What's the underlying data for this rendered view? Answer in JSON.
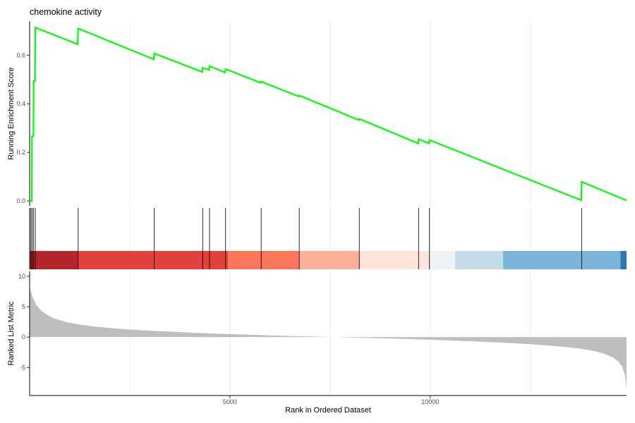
{
  "chart_data": {
    "type": "gsea-enrichment-plot",
    "title": "chemokine activity",
    "xlabel": "Rank in Ordered Dataset",
    "x_ticks": [
      5000,
      10000
    ],
    "xlim": [
      0,
      14900
    ],
    "enrichment_panel": {
      "ylabel": "Running Enrichment Score",
      "ylim": [
        -0.02,
        0.74
      ],
      "y_ticks": [
        0.0,
        0.2,
        0.4,
        0.6
      ],
      "y_tick_labels": [
        "0.0",
        "0.2",
        "0.4",
        "0.6"
      ],
      "line_color": "#00ff00",
      "running_score": [
        [
          0,
          0.0
        ],
        [
          55,
          0.0
        ],
        [
          58,
          0.266
        ],
        [
          95,
          0.266
        ],
        [
          100,
          0.493
        ],
        [
          135,
          0.493
        ],
        [
          140,
          0.714
        ],
        [
          1200,
          0.645
        ],
        [
          1210,
          0.71
        ],
        [
          3100,
          0.583
        ],
        [
          3110,
          0.607
        ],
        [
          4310,
          0.531
        ],
        [
          4320,
          0.548
        ],
        [
          4480,
          0.539
        ],
        [
          4490,
          0.555
        ],
        [
          4880,
          0.529
        ],
        [
          4890,
          0.543
        ],
        [
          5770,
          0.486
        ],
        [
          5780,
          0.491
        ],
        [
          6720,
          0.43
        ],
        [
          6730,
          0.434
        ],
        [
          8220,
          0.333
        ],
        [
          8230,
          0.338
        ],
        [
          9700,
          0.237
        ],
        [
          9710,
          0.254
        ],
        [
          9970,
          0.237
        ],
        [
          9980,
          0.251
        ],
        [
          13770,
          0.003
        ],
        [
          13780,
          0.079
        ],
        [
          14900,
          0.002
        ]
      ]
    },
    "hits_panel": {
      "hit_positions": [
        30,
        60,
        95,
        140,
        1210,
        3110,
        4320,
        4490,
        4890,
        5780,
        6730,
        8230,
        9710,
        9980,
        13780
      ]
    },
    "color_bar": {
      "segments": [
        {
          "start": 0,
          "end": 1200,
          "color": "#b2262c"
        },
        {
          "start": 1200,
          "end": 4950,
          "color": "#e2413c"
        },
        {
          "start": 4950,
          "end": 6720,
          "color": "#fb775c"
        },
        {
          "start": 6720,
          "end": 8230,
          "color": "#fcb09a"
        },
        {
          "start": 8230,
          "end": 10000,
          "color": "#fee4da"
        },
        {
          "start": 10000,
          "end": 10620,
          "color": "#eef3fa"
        },
        {
          "start": 10620,
          "end": 11820,
          "color": "#c4dcea"
        },
        {
          "start": 11820,
          "end": 14750,
          "color": "#7ab4d8"
        },
        {
          "start": 14750,
          "end": 14900,
          "color": "#2f77b2"
        }
      ]
    },
    "ranked_panel": {
      "ylabel": "Ranked List Metric",
      "ylim": [
        -9.6,
        10.8
      ],
      "y_ticks": [
        -5,
        0,
        5,
        10
      ],
      "y_tick_labels": [
        "-5",
        "0",
        "5",
        "10"
      ],
      "fill_color": "#bebebe",
      "metric": [
        [
          0,
          8.0
        ],
        [
          30,
          7.5
        ],
        [
          80,
          6.5
        ],
        [
          150,
          5.5
        ],
        [
          250,
          4.6
        ],
        [
          400,
          3.8
        ],
        [
          600,
          3.1
        ],
        [
          900,
          2.5
        ],
        [
          1200,
          2.1
        ],
        [
          1600,
          1.75
        ],
        [
          2000,
          1.5
        ],
        [
          2500,
          1.25
        ],
        [
          3000,
          1.05
        ],
        [
          3500,
          0.9
        ],
        [
          4000,
          0.75
        ],
        [
          4500,
          0.6
        ],
        [
          5000,
          0.5
        ],
        [
          5500,
          0.38
        ],
        [
          6000,
          0.28
        ],
        [
          6500,
          0.18
        ],
        [
          7000,
          0.1
        ],
        [
          7500,
          0.02
        ],
        [
          8000,
          -0.07
        ],
        [
          8500,
          -0.15
        ],
        [
          9000,
          -0.24
        ],
        [
          9500,
          -0.33
        ],
        [
          10000,
          -0.43
        ],
        [
          10500,
          -0.55
        ],
        [
          11000,
          -0.68
        ],
        [
          11500,
          -0.82
        ],
        [
          12000,
          -0.98
        ],
        [
          12500,
          -1.17
        ],
        [
          13000,
          -1.4
        ],
        [
          13500,
          -1.7
        ],
        [
          13800,
          -1.95
        ],
        [
          14100,
          -2.3
        ],
        [
          14350,
          -2.75
        ],
        [
          14550,
          -3.3
        ],
        [
          14700,
          -4.0
        ],
        [
          14800,
          -5.0
        ],
        [
          14850,
          -6.0
        ],
        [
          14880,
          -7.2
        ],
        [
          14900,
          -8.5
        ]
      ]
    }
  }
}
